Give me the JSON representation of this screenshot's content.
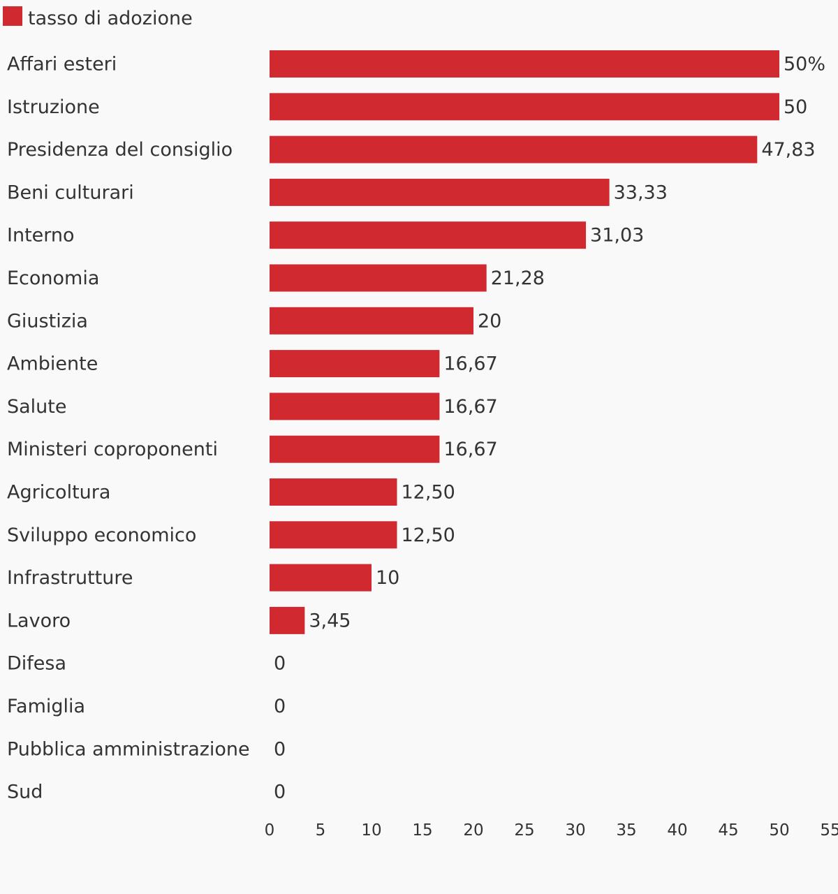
{
  "legend": {
    "label": "tasso di adozione",
    "color": "#d02a30"
  },
  "chart_data": {
    "type": "bar",
    "orientation": "horizontal",
    "series": [
      {
        "name": "tasso di adozione",
        "color": "#d02a30",
        "values": [
          50,
          50,
          47.83,
          33.33,
          31.03,
          21.28,
          20,
          16.67,
          16.67,
          16.67,
          12.5,
          12.5,
          10,
          3.45,
          0,
          0,
          0,
          0
        ]
      }
    ],
    "categories": [
      "Affari esteri",
      "Istruzione",
      "Presidenza del consiglio",
      "Beni culturari",
      "Interno",
      "Economia",
      "Giustizia",
      "Ambiente",
      "Salute",
      "Ministeri coproponenti",
      "Agricoltura",
      "Sviluppo economico",
      "Infrastrutture",
      "Lavoro",
      "Difesa",
      "Famiglia",
      "Pubblica amministrazione",
      "Sud"
    ],
    "value_labels": [
      "50%",
      "50",
      "47,83",
      "33,33",
      "31,03",
      "21,28",
      "20",
      "16,67",
      "16,67",
      "16,67",
      "12,50",
      "12,50",
      "10",
      "3,45",
      "0",
      "0",
      "0",
      "0"
    ],
    "x_ticks": [
      0,
      5,
      10,
      15,
      20,
      25,
      30,
      35,
      40,
      45,
      50,
      55
    ],
    "x_tick_labels": [
      "0",
      "5",
      "10",
      "15",
      "20",
      "25",
      "30",
      "35",
      "40",
      "45",
      "50",
      "55"
    ],
    "xlim": [
      0,
      55
    ],
    "grid": false,
    "legend_position": "top-left"
  }
}
